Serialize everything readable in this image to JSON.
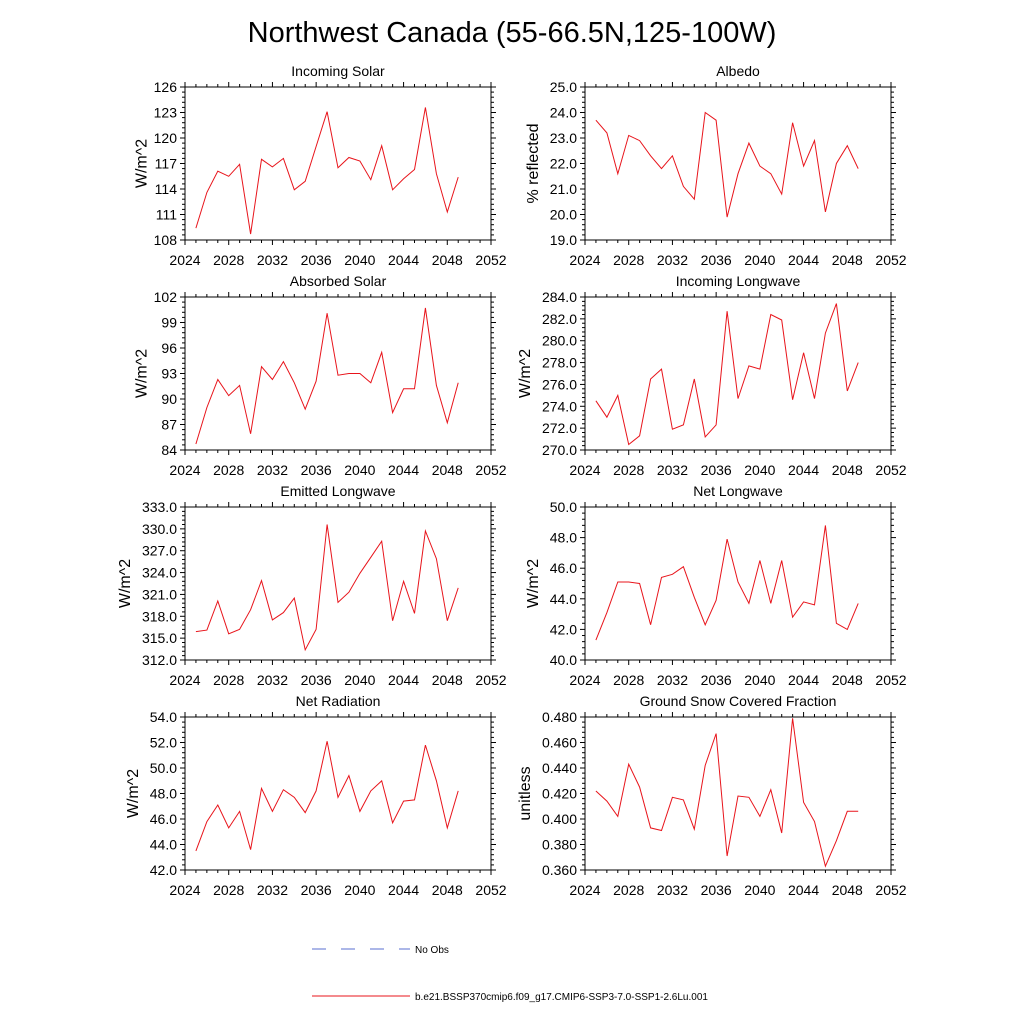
{
  "page_title": "Northwest Canada (55-66.5N,125-100W)",
  "colors": {
    "model_line": "#e8141b",
    "obs_line": "#5a6fd0",
    "axis": "#000000"
  },
  "legend": {
    "obs_label": "No Obs",
    "model_label": "b.e21.BSSP370cmip6.f09_g17.CMIP6-SSP3-7.0-SSP1-2.6Lu.001"
  },
  "chart_data": [
    {
      "type": "line",
      "title": "Incoming Solar",
      "ylabel": "W/m^2",
      "xlim": [
        2024,
        2052
      ],
      "ylim": [
        108,
        126
      ],
      "x_ticks": [
        "2024",
        "2028",
        "2032",
        "2036",
        "2040",
        "2044",
        "2048",
        "2052"
      ],
      "y_ticks": [
        "108",
        "111",
        "114",
        "117",
        "120",
        "123",
        "126"
      ],
      "x": [
        2025,
        2026,
        2027,
        2028,
        2029,
        2030,
        2031,
        2032,
        2033,
        2034,
        2035,
        2036,
        2037,
        2038,
        2039,
        2040,
        2041,
        2042,
        2043,
        2044,
        2045,
        2046,
        2047,
        2048,
        2049
      ],
      "values": [
        109.4,
        113.6,
        116.1,
        115.5,
        116.9,
        108.7,
        117.5,
        116.6,
        117.6,
        113.9,
        114.9,
        119.0,
        123.1,
        116.5,
        117.7,
        117.3,
        115.1,
        119.1,
        113.9,
        115.2,
        116.3,
        123.6,
        115.8,
        111.3,
        115.4
      ]
    },
    {
      "type": "line",
      "title": "Albedo",
      "ylabel": "% reflected",
      "xlim": [
        2024,
        2052
      ],
      "ylim": [
        19.0,
        25.0
      ],
      "x_ticks": [
        "2024",
        "2028",
        "2032",
        "2036",
        "2040",
        "2044",
        "2048",
        "2052"
      ],
      "y_ticks": [
        "19.0",
        "20.0",
        "21.0",
        "22.0",
        "23.0",
        "24.0",
        "25.0"
      ],
      "x": [
        2025,
        2026,
        2027,
        2028,
        2029,
        2030,
        2031,
        2032,
        2033,
        2034,
        2035,
        2036,
        2037,
        2038,
        2039,
        2040,
        2041,
        2042,
        2043,
        2044,
        2045,
        2046,
        2047,
        2048,
        2049
      ],
      "values": [
        23.7,
        23.2,
        21.6,
        23.1,
        22.9,
        22.3,
        21.8,
        22.3,
        21.1,
        20.6,
        24.0,
        23.7,
        19.9,
        21.6,
        22.8,
        21.9,
        21.6,
        20.8,
        23.6,
        21.9,
        22.9,
        20.1,
        22.0,
        22.7,
        21.8
      ]
    },
    {
      "type": "line",
      "title": "Absorbed Solar",
      "ylabel": "W/m^2",
      "xlim": [
        2024,
        2052
      ],
      "ylim": [
        84,
        102
      ],
      "x_ticks": [
        "2024",
        "2028",
        "2032",
        "2036",
        "2040",
        "2044",
        "2048",
        "2052"
      ],
      "y_ticks": [
        "84",
        "87",
        "90",
        "93",
        "96",
        "99",
        "102"
      ],
      "x": [
        2025,
        2026,
        2027,
        2028,
        2029,
        2030,
        2031,
        2032,
        2033,
        2034,
        2035,
        2036,
        2037,
        2038,
        2039,
        2040,
        2041,
        2042,
        2043,
        2044,
        2045,
        2046,
        2047,
        2048,
        2049
      ],
      "values": [
        84.7,
        89.0,
        92.3,
        90.4,
        91.6,
        85.9,
        93.8,
        92.3,
        94.4,
        91.9,
        88.8,
        92.1,
        100.1,
        92.8,
        93.0,
        93.0,
        91.9,
        95.5,
        88.4,
        91.2,
        91.2,
        100.7,
        91.6,
        87.2,
        91.9
      ]
    },
    {
      "type": "line",
      "title": "Incoming Longwave",
      "ylabel": "W/m^2",
      "xlim": [
        2024,
        2052
      ],
      "ylim": [
        270.0,
        284.0
      ],
      "x_ticks": [
        "2024",
        "2028",
        "2032",
        "2036",
        "2040",
        "2044",
        "2048",
        "2052"
      ],
      "y_ticks": [
        "270.0",
        "272.0",
        "274.0",
        "276.0",
        "278.0",
        "280.0",
        "282.0",
        "284.0"
      ],
      "x": [
        2025,
        2026,
        2027,
        2028,
        2029,
        2030,
        2031,
        2032,
        2033,
        2034,
        2035,
        2036,
        2037,
        2038,
        2039,
        2040,
        2041,
        2042,
        2043,
        2044,
        2045,
        2046,
        2047,
        2048,
        2049
      ],
      "values": [
        274.5,
        273.0,
        275.0,
        270.5,
        271.3,
        276.5,
        277.4,
        271.9,
        272.3,
        276.5,
        271.2,
        272.3,
        282.7,
        274.7,
        277.7,
        277.4,
        282.4,
        281.9,
        274.6,
        278.9,
        274.7,
        280.7,
        283.4,
        275.4,
        278.0
      ]
    },
    {
      "type": "line",
      "title": "Emitted Longwave",
      "ylabel": "W/m^2",
      "xlim": [
        2024,
        2052
      ],
      "ylim": [
        312.0,
        333.0
      ],
      "x_ticks": [
        "2024",
        "2028",
        "2032",
        "2036",
        "2040",
        "2044",
        "2048",
        "2052"
      ],
      "y_ticks": [
        "312.0",
        "315.0",
        "318.0",
        "321.0",
        "324.0",
        "327.0",
        "330.0",
        "333.0"
      ],
      "x": [
        2025,
        2026,
        2027,
        2028,
        2029,
        2030,
        2031,
        2032,
        2033,
        2034,
        2035,
        2036,
        2037,
        2038,
        2039,
        2040,
        2041,
        2042,
        2043,
        2044,
        2045,
        2046,
        2047,
        2048,
        2049
      ],
      "values": [
        315.9,
        316.1,
        320.1,
        315.6,
        316.2,
        318.9,
        322.9,
        317.5,
        318.5,
        320.5,
        313.4,
        316.2,
        330.6,
        319.9,
        321.3,
        323.9,
        326.1,
        328.3,
        317.4,
        322.8,
        318.4,
        329.7,
        325.9,
        317.4,
        321.9
      ]
    },
    {
      "type": "line",
      "title": "Net Longwave",
      "ylabel": "W/m^2",
      "xlim": [
        2024,
        2052
      ],
      "ylim": [
        40.0,
        50.0
      ],
      "x_ticks": [
        "2024",
        "2028",
        "2032",
        "2036",
        "2040",
        "2044",
        "2048",
        "2052"
      ],
      "y_ticks": [
        "40.0",
        "42.0",
        "44.0",
        "46.0",
        "48.0",
        "50.0"
      ],
      "x": [
        2025,
        2026,
        2027,
        2028,
        2029,
        2030,
        2031,
        2032,
        2033,
        2034,
        2035,
        2036,
        2037,
        2038,
        2039,
        2040,
        2041,
        2042,
        2043,
        2044,
        2045,
        2046,
        2047,
        2048,
        2049
      ],
      "values": [
        41.3,
        43.1,
        45.1,
        45.1,
        45.0,
        42.3,
        45.4,
        45.6,
        46.1,
        44.1,
        42.3,
        43.9,
        47.9,
        45.1,
        43.7,
        46.5,
        43.7,
        46.5,
        42.8,
        43.8,
        43.6,
        48.8,
        42.4,
        42.0,
        43.7
      ]
    },
    {
      "type": "line",
      "title": "Net Radiation",
      "ylabel": "W/m^2",
      "xlim": [
        2024,
        2052
      ],
      "ylim": [
        42.0,
        54.0
      ],
      "x_ticks": [
        "2024",
        "2028",
        "2032",
        "2036",
        "2040",
        "2044",
        "2048",
        "2052"
      ],
      "y_ticks": [
        "42.0",
        "44.0",
        "46.0",
        "48.0",
        "50.0",
        "52.0",
        "54.0"
      ],
      "x": [
        2025,
        2026,
        2027,
        2028,
        2029,
        2030,
        2031,
        2032,
        2033,
        2034,
        2035,
        2036,
        2037,
        2038,
        2039,
        2040,
        2041,
        2042,
        2043,
        2044,
        2045,
        2046,
        2047,
        2048,
        2049
      ],
      "values": [
        43.5,
        45.8,
        47.1,
        45.3,
        46.6,
        43.6,
        48.4,
        46.6,
        48.3,
        47.7,
        46.5,
        48.2,
        52.1,
        47.7,
        49.4,
        46.6,
        48.2,
        49.0,
        45.7,
        47.4,
        47.5,
        51.8,
        49.0,
        45.3,
        48.2
      ]
    },
    {
      "type": "line",
      "title": "Ground Snow Covered Fraction",
      "ylabel": "unitless",
      "xlim": [
        2024,
        2052
      ],
      "ylim": [
        0.36,
        0.48
      ],
      "x_ticks": [
        "2024",
        "2028",
        "2032",
        "2036",
        "2040",
        "2044",
        "2048",
        "2052"
      ],
      "y_ticks": [
        "0.360",
        "0.380",
        "0.400",
        "0.420",
        "0.440",
        "0.460",
        "0.480"
      ],
      "x": [
        2025,
        2026,
        2027,
        2028,
        2029,
        2030,
        2031,
        2032,
        2033,
        2034,
        2035,
        2036,
        2037,
        2038,
        2039,
        2040,
        2041,
        2042,
        2043,
        2044,
        2045,
        2046,
        2047,
        2048,
        2049
      ],
      "values": [
        0.422,
        0.414,
        0.402,
        0.443,
        0.425,
        0.393,
        0.391,
        0.417,
        0.415,
        0.392,
        0.442,
        0.467,
        0.371,
        0.418,
        0.417,
        0.402,
        0.423,
        0.389,
        0.479,
        0.413,
        0.398,
        0.363,
        0.383,
        0.406,
        0.406
      ]
    }
  ]
}
